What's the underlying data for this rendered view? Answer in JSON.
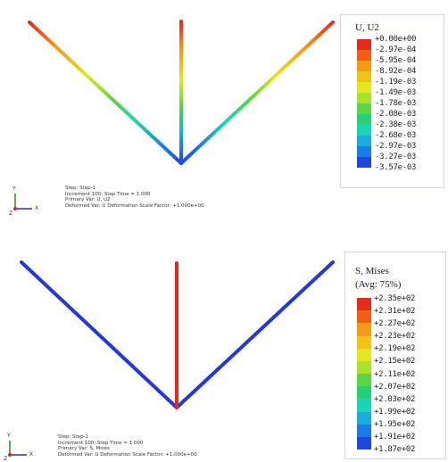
{
  "top_panel": {
    "legend_title": "U, U2",
    "legend_values": [
      "+0.00e+00",
      "-2.97e-04",
      "-5.95e-04",
      "-8.92e-04",
      "-1.19e-03",
      "-1.49e-03",
      "-1.78e-03",
      "-2.08e-03",
      "-2.38e-03",
      "-2.68e-03",
      "-2.97e-03",
      "-3.27e-03",
      "-3.57e-03"
    ],
    "legend_colors": [
      "#e52b1a",
      "#f25e16",
      "#f59a14",
      "#f0c416",
      "#e3e51e",
      "#a8e32a",
      "#58d646",
      "#26d07b",
      "#1ad4b3",
      "#1aaedf",
      "#1a7ce6",
      "#2046e0"
    ],
    "info_lines": [
      "Step: Step-1",
      "Increment 100: Step Time = 1.000",
      "Primary Var: U, U2",
      "Deformed Var: U  Deformation Scale Factor: +1.000e+00"
    ],
    "triad": {
      "y": "Y",
      "x": "X",
      "z": "Z"
    }
  },
  "bottom_panel": {
    "legend_title": "S, Mises",
    "legend_subtitle": "(Avg: 75%)",
    "legend_values": [
      "+2.35e+02",
      "+2.31e+02",
      "+2.27e+02",
      "+2.23e+02",
      "+2.19e+02",
      "+2.15e+02",
      "+2.11e+02",
      "+2.07e+02",
      "+2.03e+02",
      "+1.99e+02",
      "+1.95e+02",
      "+1.91e+02",
      "+1.87e+02"
    ],
    "legend_colors": [
      "#e52b1a",
      "#f25e16",
      "#f59a14",
      "#f0c416",
      "#e3e51e",
      "#a8e32a",
      "#58d646",
      "#26d07b",
      "#1ad4b3",
      "#1aaedf",
      "#1a7ce6",
      "#2046e0"
    ],
    "info_lines": [
      "Step: Step-1",
      "Increment 100: Step Time = 1.000",
      "Primary Var: S, Mises",
      "Deformed Var: U  Deformation Scale Factor: +1.000e+00"
    ],
    "triad": {
      "y": "Y",
      "x": "X",
      "z": "Z"
    }
  }
}
